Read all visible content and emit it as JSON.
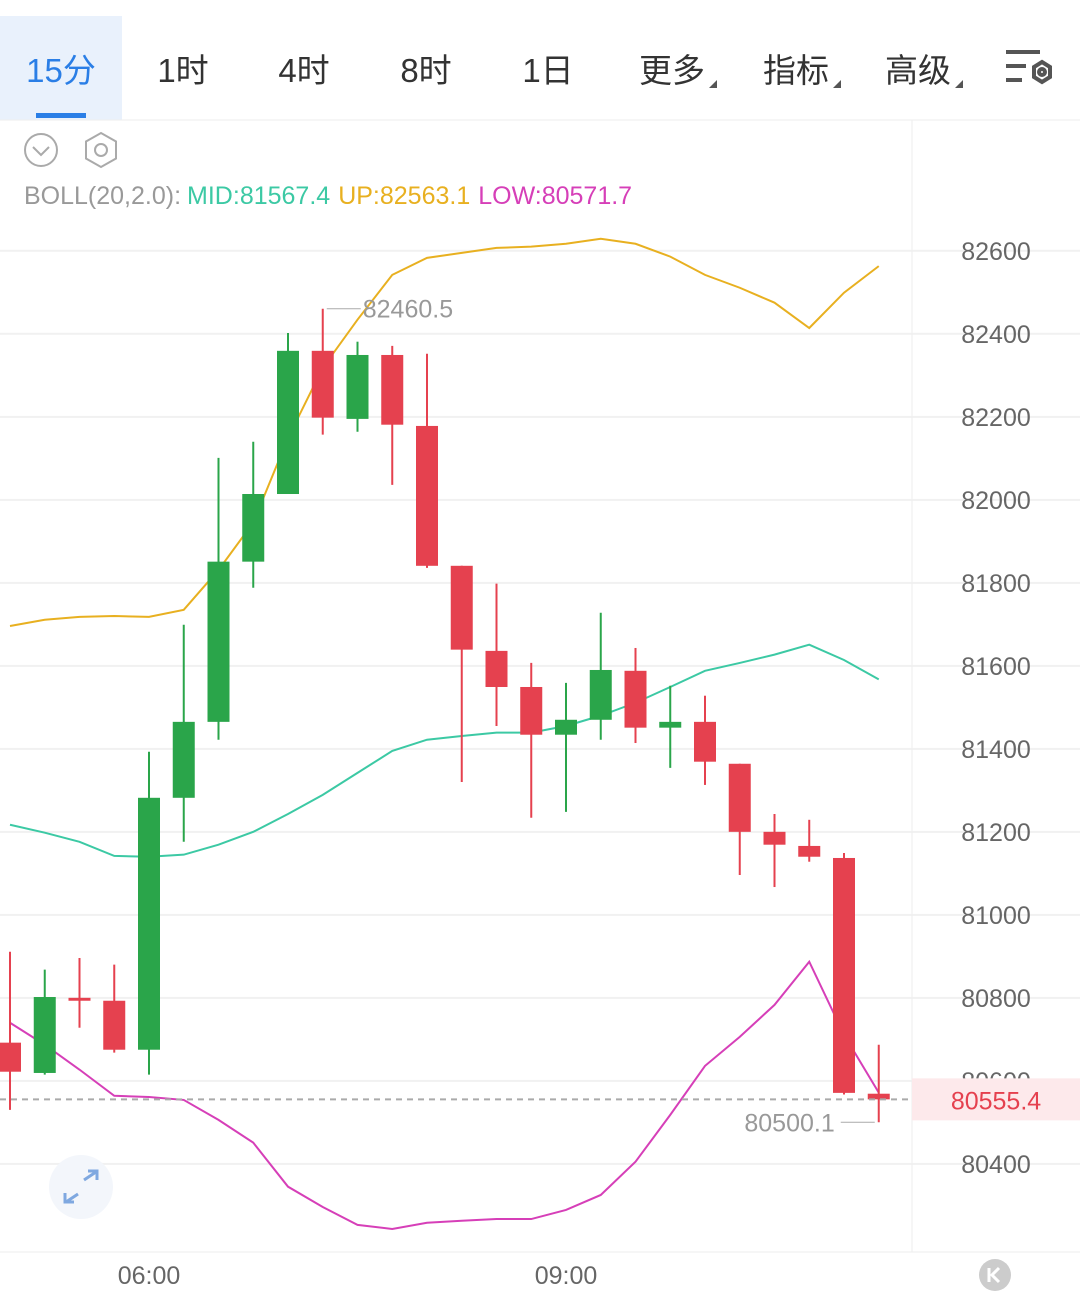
{
  "tabs": [
    "15分",
    "1时",
    "4时",
    "8时",
    "1日",
    "更多",
    "指标",
    "高级"
  ],
  "chart_data": {
    "type": "candlestick",
    "categories": [
      null,
      null,
      null,
      null,
      "06:00",
      null,
      null,
      null,
      null,
      null,
      null,
      null,
      null,
      null,
      null,
      null,
      "09:00",
      null,
      null,
      null,
      null,
      null,
      null,
      null,
      null,
      null
    ],
    "open": [
      80692,
      80619,
      80800,
      80793,
      80675,
      81282,
      81465,
      81851,
      82014,
      82359,
      82195,
      82349,
      82178,
      81841,
      81636,
      81549,
      81434,
      81470,
      81588,
      81451,
      81465,
      81364,
      81200,
      81166,
      81137,
      80569
    ],
    "high": [
      80911,
      80868,
      80896,
      80880,
      81393,
      81699,
      82101,
      82140,
      82402,
      82460.5,
      82381,
      82371,
      82352,
      81841,
      81798,
      81607,
      81559,
      81728,
      81643,
      81552,
      81528,
      81364,
      81243,
      81229,
      81149,
      80687
    ],
    "low": [
      80530,
      80615,
      80728,
      80668,
      80615,
      81176,
      81422,
      81788,
      82014,
      82157,
      82164,
      82036,
      81836,
      81320,
      81455,
      81234,
      81248,
      81422,
      81414,
      81354,
      81313,
      81096,
      81067,
      81128,
      80567,
      80500.1
    ],
    "close": [
      80622,
      80802,
      80793,
      80675,
      81282,
      81465,
      81851,
      82014,
      82359,
      82198,
      82349,
      82181,
      81841,
      81639,
      81549,
      81434,
      81470,
      81590,
      81451,
      81465,
      81369,
      81200,
      81169,
      81140,
      80571,
      80555.4
    ],
    "up_color": "#2aa54a",
    "down_color": "#e5414f",
    "indicator_label": "BOLL(20,2.0):",
    "lines": [
      {
        "name": "MID:",
        "color": "#3cc9a4",
        "values": [
          81217,
          81198,
          81176,
          81142,
          81140,
          81145,
          81169,
          81200,
          81243,
          81289,
          81342,
          81395,
          81422,
          81431,
          81439,
          81439,
          81455,
          81480,
          81511,
          81549,
          81588,
          81607,
          81627,
          81651,
          81614,
          81567.4
        ]
      },
      {
        "name": "UP:",
        "color": "#e8b020",
        "values": [
          81696,
          81711,
          81718,
          81720,
          81718,
          81735,
          81831,
          81945,
          82149,
          82318,
          82434,
          82542,
          82583,
          82595,
          82607,
          82610,
          82617,
          82629,
          82617,
          82586,
          82542,
          82511,
          82475,
          82414,
          82499,
          82563.1
        ]
      },
      {
        "name": "LOW:",
        "color": "#d63fb8",
        "values": [
          80740,
          80687,
          80627,
          80564,
          80561,
          80554,
          80506,
          80451,
          80345,
          80296,
          80253,
          80243,
          80258,
          80263,
          80267,
          80267,
          80289,
          80325,
          80405,
          80518,
          80636,
          80706,
          80783,
          80887,
          80711,
          80571.7
        ]
      }
    ],
    "ylim": [
      80190,
      82920
    ],
    "yticks": [
      80400,
      80600,
      80800,
      81000,
      81200,
      81400,
      81600,
      81800,
      82000,
      82200,
      82400,
      82600
    ],
    "grid": true
  }
}
